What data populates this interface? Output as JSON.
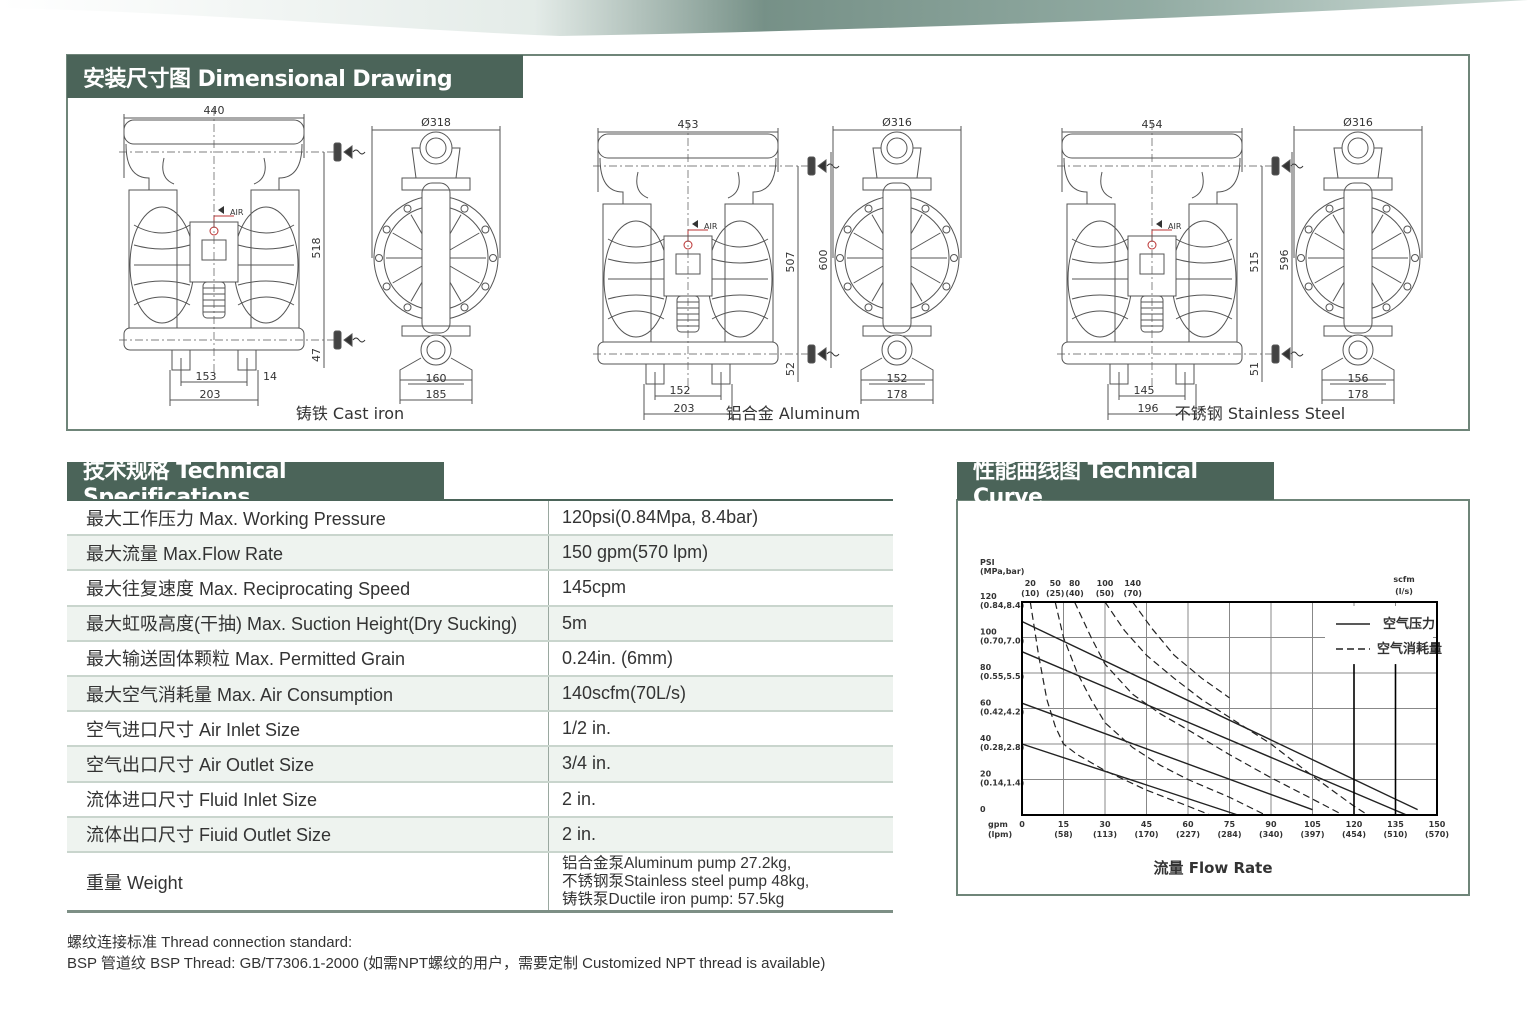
{
  "dimensional": {
    "title": "安装尺寸图 Dimensional Drawing",
    "air_label": "AIR",
    "drawings": [
      {
        "caption": "铸铁 Cast iron",
        "width": "440",
        "diameter": "Ø318",
        "height": "518",
        "base_height": "47",
        "bolt_inner": "153",
        "bolt_outer": "203",
        "foot_gap": "14",
        "side_height": "",
        "side_inner": "160",
        "side_outer": "185"
      },
      {
        "caption": "铝合金 Aluminum",
        "width": "453",
        "diameter": "Ø316",
        "height": "507",
        "base_height": "52",
        "bolt_inner": "152",
        "bolt_outer": "203",
        "foot_gap": "",
        "side_height": "600",
        "side_inner": "152",
        "side_outer": "178"
      },
      {
        "caption": "不锈钢 Stainless Steel",
        "width": "454",
        "diameter": "Ø316",
        "height": "515",
        "base_height": "51",
        "bolt_inner": "145",
        "bolt_outer": "196",
        "foot_gap": "",
        "side_height": "596",
        "side_inner": "156",
        "side_outer": "178"
      }
    ]
  },
  "specs": {
    "title": "技术规格 Technical Specifications",
    "rows": [
      {
        "label": "最大工作压力  Max. Working Pressure",
        "value": "120psi(0.84Mpa, 8.4bar)"
      },
      {
        "label": "最大流量  Max.Flow Rate",
        "value": "150 gpm(570 lpm)"
      },
      {
        "label": "最大往复速度  Max. Reciprocating Speed",
        "value": "145cpm"
      },
      {
        "label": "最大虹吸高度(干抽)  Max. Suction Height(Dry Sucking)",
        "value": "5m"
      },
      {
        "label": "最大输送固体颗粒  Max. Permitted Grain",
        "value": "0.24in. (6mm)"
      },
      {
        "label": "最大空气消耗量  Max. Air Consumption",
        "value": "140scfm(70L/s)"
      },
      {
        "label": "空气进口尺寸  Air Inlet Size",
        "value": "1/2 in."
      },
      {
        "label": "空气出口尺寸  Air Outlet Size",
        "value": "3/4 in."
      },
      {
        "label": "流体进口尺寸  Fluid Inlet Size",
        "value": "2 in."
      },
      {
        "label": "流体出口尺寸  Fiuid Outlet Size",
        "value": "2 in."
      }
    ],
    "weight": {
      "label": "重量  Weight",
      "values": [
        "铝合金泵Aluminum pump 27.2kg,",
        "不锈钢泵Stainless steel pump 48kg,",
        "铸铁泵Ductile iron pump: 57.5kg"
      ]
    },
    "notes": [
      "螺纹连接标准 Thread connection standard:",
      "BSP 管道纹 BSP Thread: GB/T7306.1-2000 (如需NPT螺纹的用户，需要定制 Customized NPT thread is available)"
    ]
  },
  "curve": {
    "title": "性能曲线图 Technical Curve",
    "chart_data": {
      "type": "line",
      "xlabel": "流量 Flow Rate",
      "x_unit_label": [
        "gpm",
        "(lpm)"
      ],
      "y_unit_label": [
        "PSI",
        "(MPa,bar)"
      ],
      "air_unit_label": [
        "scfm",
        "(l/s)"
      ],
      "xlim": [
        0,
        150
      ],
      "ylim": [
        0,
        120
      ],
      "grid": true,
      "legend_position": "top-right",
      "x_ticks": [
        {
          "v": 0,
          "a": "0",
          "b": ""
        },
        {
          "v": 15,
          "a": "15",
          "b": "(58)"
        },
        {
          "v": 30,
          "a": "30",
          "b": "(113)"
        },
        {
          "v": 45,
          "a": "45",
          "b": "(170)"
        },
        {
          "v": 60,
          "a": "60",
          "b": "(227)"
        },
        {
          "v": 75,
          "a": "75",
          "b": "(284)"
        },
        {
          "v": 90,
          "a": "90",
          "b": "(340)"
        },
        {
          "v": 105,
          "a": "105",
          "b": "(397)"
        },
        {
          "v": 120,
          "a": "120",
          "b": "(454)"
        },
        {
          "v": 135,
          "a": "135",
          "b": "(510)"
        },
        {
          "v": 150,
          "a": "150",
          "b": "(570)"
        }
      ],
      "y_ticks": [
        {
          "v": 0,
          "a": "0",
          "b": ""
        },
        {
          "v": 20,
          "a": "20",
          "b": "(0.14,1.4)"
        },
        {
          "v": 40,
          "a": "40",
          "b": "(0.28,2.8)"
        },
        {
          "v": 60,
          "a": "60",
          "b": "(0.42,4.2)"
        },
        {
          "v": 80,
          "a": "80",
          "b": "(0.55,5.5)"
        },
        {
          "v": 100,
          "a": "100",
          "b": "(0.70,7.0)"
        },
        {
          "v": 120,
          "a": "120",
          "b": "(0.84,8.4)"
        }
      ],
      "legend": [
        {
          "label": "空气压力",
          "style": "solid"
        },
        {
          "label": "空气消耗量",
          "style": "dashed"
        }
      ],
      "pressure_series": [
        {
          "points": [
            [
              0,
              109
            ],
            [
              143,
              3
            ]
          ]
        },
        {
          "points": [
            [
              0,
              92
            ],
            [
              139,
              0
            ]
          ]
        },
        {
          "points": [
            [
              0,
              63
            ],
            [
              105,
              3
            ]
          ]
        },
        {
          "points": [
            [
              0,
              40
            ],
            [
              78,
              0
            ]
          ]
        }
      ],
      "air_series": [
        {
          "a": "20",
          "b": "(10)",
          "points": [
            [
              3,
              120
            ],
            [
              6,
              90
            ],
            [
              9,
              65
            ],
            [
              12,
              50
            ],
            [
              15,
              40
            ],
            [
              20,
              34
            ],
            [
              30,
              25
            ],
            [
              45,
              14
            ],
            [
              60,
              5
            ],
            [
              68,
              0
            ]
          ]
        },
        {
          "a": "50",
          "b": "(25)",
          "points": [
            [
              12,
              120
            ],
            [
              15,
              100
            ],
            [
              20,
              80
            ],
            [
              25,
              65
            ],
            [
              30,
              52
            ],
            [
              40,
              38
            ],
            [
              50,
              28
            ],
            [
              60,
              20
            ],
            [
              75,
              10
            ],
            [
              88,
              0
            ]
          ]
        },
        {
          "a": "80",
          "b": "(40)",
          "points": [
            [
              19,
              120
            ],
            [
              25,
              100
            ],
            [
              30,
              85
            ],
            [
              40,
              68
            ],
            [
              50,
              57
            ],
            [
              60,
              48
            ],
            [
              75,
              34
            ],
            [
              90,
              21
            ],
            [
              105,
              9
            ],
            [
              116,
              0
            ]
          ]
        },
        {
          "a": "100",
          "b": "(50)",
          "points": [
            [
              30,
              120
            ],
            [
              37,
              104
            ],
            [
              45,
              90
            ],
            [
              55,
              77
            ],
            [
              65,
              65
            ],
            [
              75,
              55
            ],
            [
              90,
              40
            ],
            [
              105,
              22
            ],
            [
              120,
              5
            ],
            [
              125,
              0
            ]
          ]
        },
        {
          "a": "140",
          "b": "(70)",
          "points": [
            [
              40,
              120
            ],
            [
              47,
              105
            ],
            [
              55,
              90
            ],
            [
              65,
              77
            ],
            [
              75,
              66
            ]
          ]
        }
      ],
      "marker_lines_x": [
        120,
        135
      ]
    }
  }
}
